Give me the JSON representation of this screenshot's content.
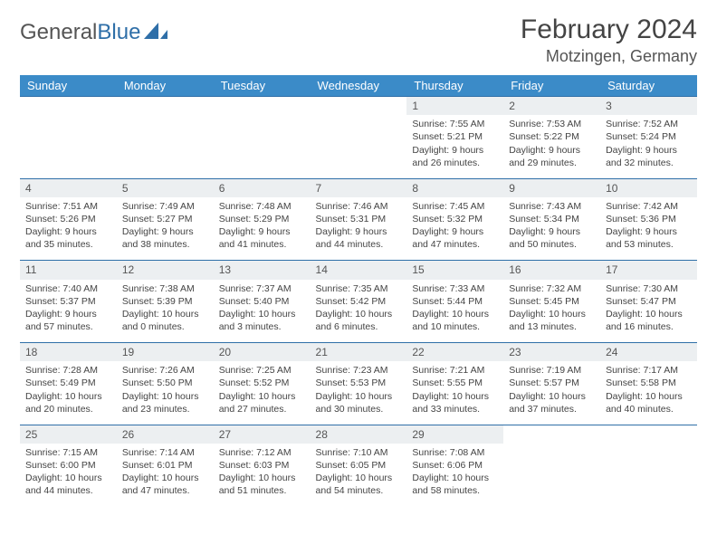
{
  "logo": {
    "text_general": "General",
    "text_blue": "Blue"
  },
  "header": {
    "month_title": "February 2024",
    "location": "Motzingen, Germany"
  },
  "colors": {
    "header_bg": "#3b8bc8",
    "header_text": "#ffffff",
    "border": "#2f6fa8",
    "daynum_bg": "#eceff1",
    "text": "#444444",
    "logo_gray": "#555555",
    "logo_blue": "#2f6fa8"
  },
  "weekdays": [
    "Sunday",
    "Monday",
    "Tuesday",
    "Wednesday",
    "Thursday",
    "Friday",
    "Saturday"
  ],
  "weeks": [
    [
      null,
      null,
      null,
      null,
      {
        "n": "1",
        "sunrise": "7:55 AM",
        "sunset": "5:21 PM",
        "daylight": "9 hours and 26 minutes."
      },
      {
        "n": "2",
        "sunrise": "7:53 AM",
        "sunset": "5:22 PM",
        "daylight": "9 hours and 29 minutes."
      },
      {
        "n": "3",
        "sunrise": "7:52 AM",
        "sunset": "5:24 PM",
        "daylight": "9 hours and 32 minutes."
      }
    ],
    [
      {
        "n": "4",
        "sunrise": "7:51 AM",
        "sunset": "5:26 PM",
        "daylight": "9 hours and 35 minutes."
      },
      {
        "n": "5",
        "sunrise": "7:49 AM",
        "sunset": "5:27 PM",
        "daylight": "9 hours and 38 minutes."
      },
      {
        "n": "6",
        "sunrise": "7:48 AM",
        "sunset": "5:29 PM",
        "daylight": "9 hours and 41 minutes."
      },
      {
        "n": "7",
        "sunrise": "7:46 AM",
        "sunset": "5:31 PM",
        "daylight": "9 hours and 44 minutes."
      },
      {
        "n": "8",
        "sunrise": "7:45 AM",
        "sunset": "5:32 PM",
        "daylight": "9 hours and 47 minutes."
      },
      {
        "n": "9",
        "sunrise": "7:43 AM",
        "sunset": "5:34 PM",
        "daylight": "9 hours and 50 minutes."
      },
      {
        "n": "10",
        "sunrise": "7:42 AM",
        "sunset": "5:36 PM",
        "daylight": "9 hours and 53 minutes."
      }
    ],
    [
      {
        "n": "11",
        "sunrise": "7:40 AM",
        "sunset": "5:37 PM",
        "daylight": "9 hours and 57 minutes."
      },
      {
        "n": "12",
        "sunrise": "7:38 AM",
        "sunset": "5:39 PM",
        "daylight": "10 hours and 0 minutes."
      },
      {
        "n": "13",
        "sunrise": "7:37 AM",
        "sunset": "5:40 PM",
        "daylight": "10 hours and 3 minutes."
      },
      {
        "n": "14",
        "sunrise": "7:35 AM",
        "sunset": "5:42 PM",
        "daylight": "10 hours and 6 minutes."
      },
      {
        "n": "15",
        "sunrise": "7:33 AM",
        "sunset": "5:44 PM",
        "daylight": "10 hours and 10 minutes."
      },
      {
        "n": "16",
        "sunrise": "7:32 AM",
        "sunset": "5:45 PM",
        "daylight": "10 hours and 13 minutes."
      },
      {
        "n": "17",
        "sunrise": "7:30 AM",
        "sunset": "5:47 PM",
        "daylight": "10 hours and 16 minutes."
      }
    ],
    [
      {
        "n": "18",
        "sunrise": "7:28 AM",
        "sunset": "5:49 PM",
        "daylight": "10 hours and 20 minutes."
      },
      {
        "n": "19",
        "sunrise": "7:26 AM",
        "sunset": "5:50 PM",
        "daylight": "10 hours and 23 minutes."
      },
      {
        "n": "20",
        "sunrise": "7:25 AM",
        "sunset": "5:52 PM",
        "daylight": "10 hours and 27 minutes."
      },
      {
        "n": "21",
        "sunrise": "7:23 AM",
        "sunset": "5:53 PM",
        "daylight": "10 hours and 30 minutes."
      },
      {
        "n": "22",
        "sunrise": "7:21 AM",
        "sunset": "5:55 PM",
        "daylight": "10 hours and 33 minutes."
      },
      {
        "n": "23",
        "sunrise": "7:19 AM",
        "sunset": "5:57 PM",
        "daylight": "10 hours and 37 minutes."
      },
      {
        "n": "24",
        "sunrise": "7:17 AM",
        "sunset": "5:58 PM",
        "daylight": "10 hours and 40 minutes."
      }
    ],
    [
      {
        "n": "25",
        "sunrise": "7:15 AM",
        "sunset": "6:00 PM",
        "daylight": "10 hours and 44 minutes."
      },
      {
        "n": "26",
        "sunrise": "7:14 AM",
        "sunset": "6:01 PM",
        "daylight": "10 hours and 47 minutes."
      },
      {
        "n": "27",
        "sunrise": "7:12 AM",
        "sunset": "6:03 PM",
        "daylight": "10 hours and 51 minutes."
      },
      {
        "n": "28",
        "sunrise": "7:10 AM",
        "sunset": "6:05 PM",
        "daylight": "10 hours and 54 minutes."
      },
      {
        "n": "29",
        "sunrise": "7:08 AM",
        "sunset": "6:06 PM",
        "daylight": "10 hours and 58 minutes."
      },
      null,
      null
    ]
  ],
  "labels": {
    "sunrise": "Sunrise:",
    "sunset": "Sunset:",
    "daylight": "Daylight:"
  }
}
